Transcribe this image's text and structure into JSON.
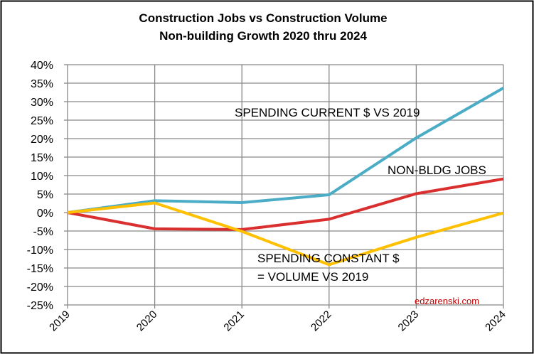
{
  "chart_data": {
    "type": "line",
    "title": [
      "Construction Jobs vs Construction Volume",
      "Non-building Growth 2020 thru 2024"
    ],
    "xlabel": "",
    "ylabel": "",
    "categories": [
      "2019",
      "2020",
      "2021",
      "2022",
      "2023",
      "2024"
    ],
    "ylim": [
      -25,
      40
    ],
    "yticks": [
      40,
      35,
      30,
      25,
      20,
      15,
      10,
      5,
      0,
      -5,
      -10,
      -15,
      -20,
      -25
    ],
    "ytick_labels": [
      "40%",
      "35%",
      "30%",
      "25%",
      "20%",
      "15%",
      "10%",
      "5%",
      "0%",
      "-5%",
      "-10%",
      "-15%",
      "-20%",
      "-25%"
    ],
    "grid": true,
    "series": [
      {
        "color": "#4BACC6",
        "values": [
          0,
          3.2,
          2.7,
          4.8,
          20.2,
          33.7
        ]
      },
      {
        "color": "#D9302F",
        "values": [
          0,
          -4.4,
          -4.6,
          -1.8,
          5.1,
          9.1
        ]
      },
      {
        "color": "#FFC000",
        "values": [
          0,
          2.6,
          -5.1,
          -14.1,
          -6.7,
          -0.1
        ]
      }
    ],
    "annotations": [
      {
        "text": "SPENDING CURRENT $ VS 2019"
      },
      {
        "text": "NON-BLDG JOBS"
      },
      {
        "text": "SPENDING CONSTANT $"
      },
      {
        "text": "= VOLUME  VS 2019"
      }
    ],
    "watermark": "edzarenski.com",
    "watermark_color": "#C00000"
  }
}
